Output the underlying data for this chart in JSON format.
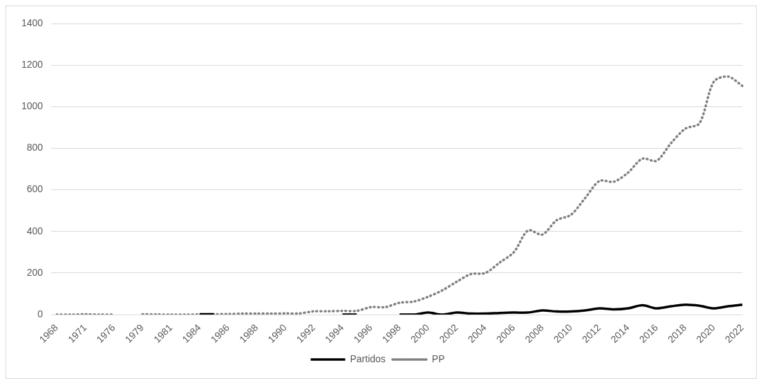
{
  "chart_data": {
    "type": "line",
    "categories": [
      "1968",
      null,
      "1971",
      null,
      "1976",
      null,
      "1979",
      null,
      "1981",
      null,
      "1984",
      null,
      "1986",
      null,
      "1988",
      null,
      "1990",
      null,
      "1992",
      null,
      "1994",
      null,
      "1996",
      null,
      "1998",
      null,
      "2000",
      null,
      "2002",
      null,
      "2004",
      null,
      "2006",
      null,
      "2008",
      null,
      "2010",
      null,
      "2012",
      null,
      "2014",
      null,
      "2016",
      null,
      "2018",
      null,
      "2020",
      null,
      "2022"
    ],
    "series": [
      {
        "name": "Partidos",
        "color": "#000000",
        "line_style": "solid",
        "values": [
          null,
          null,
          null,
          null,
          null,
          null,
          null,
          null,
          null,
          null,
          2,
          2,
          null,
          null,
          null,
          null,
          null,
          null,
          null,
          null,
          0,
          0,
          null,
          null,
          0,
          0,
          10,
          0,
          10,
          5,
          5,
          8,
          10,
          10,
          20,
          15,
          15,
          20,
          30,
          25,
          30,
          45,
          30,
          40,
          48,
          43,
          30,
          40,
          48
        ]
      },
      {
        "name": "PP",
        "color": "#808080",
        "line_style": "dotted",
        "values": [
          0,
          0,
          2,
          0,
          0,
          null,
          2,
          1,
          0,
          0,
          1,
          2,
          3,
          5,
          5,
          5,
          6,
          6,
          16,
          16,
          18,
          18,
          36,
          36,
          57,
          63,
          86,
          117,
          158,
          195,
          200,
          250,
          300,
          405,
          385,
          454,
          480,
          561,
          643,
          639,
          683,
          750,
          740,
          824,
          894,
          920,
          1120,
          1145,
          1100
        ]
      }
    ],
    "ylim": [
      0,
      1400
    ],
    "yticks": [
      0,
      200,
      400,
      600,
      800,
      1000,
      1200,
      1400
    ],
    "grid": "y",
    "legend": "bottom",
    "marker": "none"
  }
}
